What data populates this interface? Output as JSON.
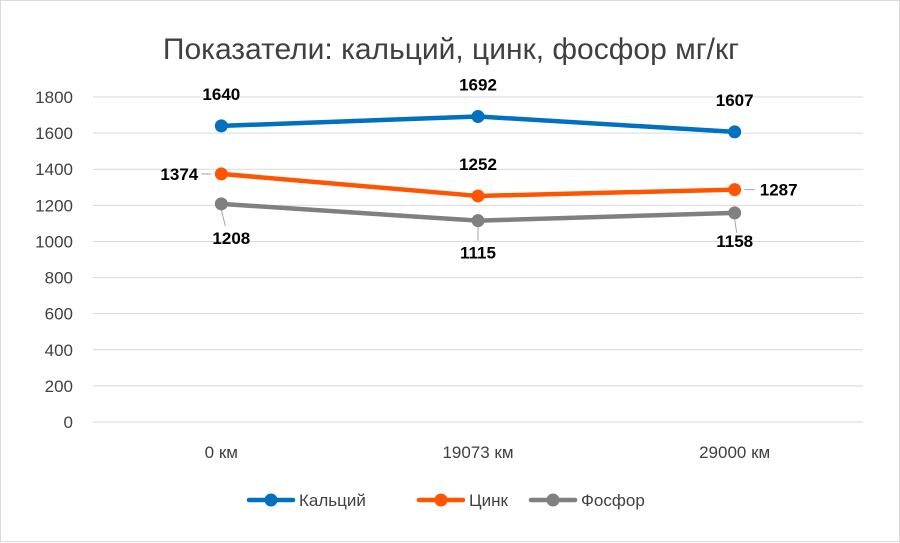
{
  "chart_data": {
    "type": "line",
    "title": "Показатели: кальций, цинк, фосфор мг/кг",
    "categories": [
      "0 км",
      "19073 км",
      "29000 км"
    ],
    "ylim": [
      0,
      1800
    ],
    "yticks": [
      0,
      200,
      400,
      600,
      800,
      1000,
      1200,
      1400,
      1600,
      1800
    ],
    "grid": true,
    "legend_position": "bottom",
    "series": [
      {
        "name": "Кальций",
        "color": "#0070C0",
        "values": [
          1640,
          1692,
          1607
        ]
      },
      {
        "name": "Цинк",
        "color": "#FF5500",
        "values": [
          1374,
          1252,
          1287
        ]
      },
      {
        "name": "Фосфор",
        "color": "#808080",
        "values": [
          1208,
          1115,
          1158
        ]
      }
    ]
  }
}
